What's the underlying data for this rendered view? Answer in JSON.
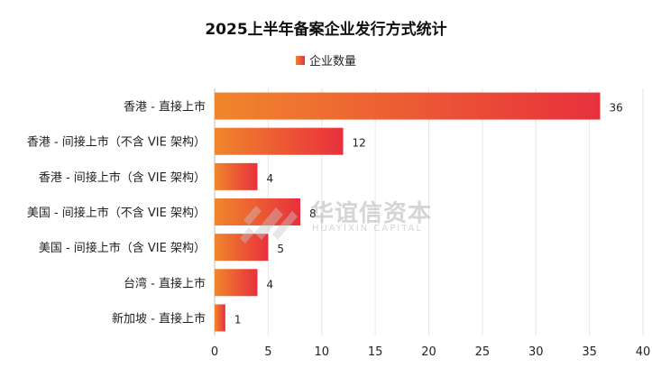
{
  "colors": {
    "bar_gradient_start": "#f0862c",
    "bar_gradient_end": "#e8303c",
    "grid": "#e6e6e6",
    "axis": "#bfbfbf",
    "watermark": "#9c9c9c"
  },
  "watermark": {
    "brand_cn": "华谊信资本",
    "brand_en": "HUAYIXIN CAPITAL",
    "logo_icon": "huayixin-logo-icon"
  },
  "chart_data": {
    "type": "bar",
    "orientation": "horizontal",
    "title": "2025上半年备案企业发行方式统计",
    "categories": [
      "香港 - 直接上市",
      "香港 - 间接上市（不含 VIE 架构）",
      "香港 - 间接上市（含 VIE 架构）",
      "美国 - 间接上市（不含 VIE 架构）",
      "美国 - 间接上市（含 VIE 架构）",
      "台湾 - 直接上市",
      "新加坡 - 直接上市"
    ],
    "series": [
      {
        "name": "企业数量",
        "values": [
          36,
          12,
          4,
          8,
          5,
          4,
          1
        ]
      }
    ],
    "xlim": [
      0,
      40
    ],
    "xticks": [
      0,
      5,
      10,
      15,
      20,
      25,
      30,
      35,
      40
    ],
    "xlabel": "",
    "ylabel": "",
    "grid": true,
    "legend_position": "top-center",
    "data_labels": true
  }
}
